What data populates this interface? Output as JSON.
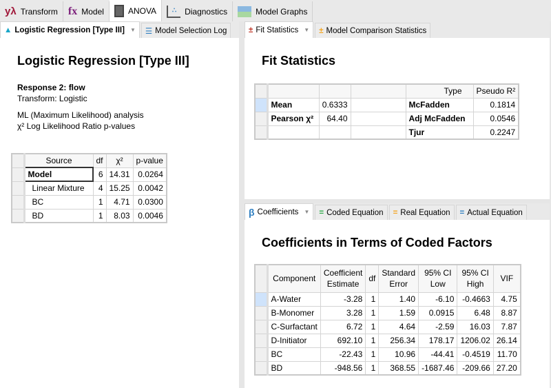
{
  "top_tabs": [
    {
      "label": "Transform",
      "icon": "y-lambda-icon"
    },
    {
      "label": "Model",
      "icon": "fx-icon"
    },
    {
      "label": "ANOVA",
      "icon": "calculator-icon",
      "active": true
    },
    {
      "label": "Diagnostics",
      "icon": "scatter-plot-icon"
    },
    {
      "label": "Model Graphs",
      "icon": "area-chart-icon"
    }
  ],
  "left": {
    "tabs": [
      {
        "label": "Logistic Regression [Type III]",
        "icon": "bell-curve-icon",
        "active": true
      },
      {
        "label": "Model Selection Log",
        "icon": "list-icon"
      }
    ],
    "title": "Logistic Regression [Type III]",
    "response": "Response 2: flow",
    "transform": "Transform: Logistic",
    "analysis": "ML (Maximum Likelihood) analysis",
    "pvalues": "χ² Log Likelihood Ratio p-values",
    "table": {
      "headers": [
        "Source",
        "df",
        "χ²",
        "p-value"
      ],
      "rows": [
        [
          "Model",
          "6",
          "14.31",
          "0.0264"
        ],
        [
          "Linear Mixture",
          "4",
          "15.25",
          "0.0042"
        ],
        [
          "BC",
          "1",
          "4.71",
          "0.0300"
        ],
        [
          "BD",
          "1",
          "8.03",
          "0.0046"
        ]
      ]
    }
  },
  "fit": {
    "tabs": [
      {
        "label": "Fit Statistics",
        "icon": "plus-minus-icon",
        "active": true
      },
      {
        "label": "Model Comparison Statistics",
        "icon": "plus-minus-icon"
      }
    ],
    "title": "Fit Statistics",
    "headers": [
      "",
      "",
      "",
      "Type",
      "Pseudo R²"
    ],
    "rows": [
      [
        "Mean",
        "0.6333",
        "",
        "McFadden",
        "0.1814"
      ],
      [
        "Pearson χ²",
        "64.40",
        "",
        "Adj McFadden",
        "0.0546"
      ],
      [
        "",
        "",
        "",
        "Tjur",
        "0.2247"
      ]
    ]
  },
  "coef": {
    "tabs": [
      {
        "label": "Coefficients",
        "icon": "beta-icon",
        "active": true
      },
      {
        "label": "Coded Equation",
        "icon": "equals-green-icon"
      },
      {
        "label": "Real Equation",
        "icon": "equals-orange-icon"
      },
      {
        "label": "Actual Equation",
        "icon": "equals-blue-icon"
      }
    ],
    "title": "Coefficients in Terms of Coded Factors",
    "headers": [
      [
        "Component"
      ],
      [
        "Coefficient",
        "Estimate"
      ],
      [
        "df"
      ],
      [
        "Standard",
        "Error"
      ],
      [
        "95% CI",
        "Low"
      ],
      [
        "95% CI",
        "High"
      ],
      [
        "VIF"
      ]
    ],
    "rows": [
      [
        "A-Water",
        "-3.28",
        "1",
        "1.40",
        "-6.10",
        "-0.4663",
        "4.75"
      ],
      [
        "B-Monomer",
        "3.28",
        "1",
        "1.59",
        "0.0915",
        "6.48",
        "8.87"
      ],
      [
        "C-Surfactant",
        "6.72",
        "1",
        "4.64",
        "-2.59",
        "16.03",
        "7.87"
      ],
      [
        "D-Initiator",
        "692.10",
        "1",
        "256.34",
        "178.17",
        "1206.02",
        "26.14"
      ],
      [
        "BC",
        "-22.43",
        "1",
        "10.96",
        "-44.41",
        "-0.4519",
        "11.70"
      ],
      [
        "BD",
        "-948.56",
        "1",
        "368.55",
        "-1687.46",
        "-209.66",
        "27.20"
      ]
    ]
  },
  "colors": {
    "accent_blue": "#1e90ff",
    "red": "#c0392b",
    "purple": "#7b1e7a",
    "green": "#2eaa4a",
    "orange": "#f5a623",
    "blue": "#2f7fc1"
  }
}
